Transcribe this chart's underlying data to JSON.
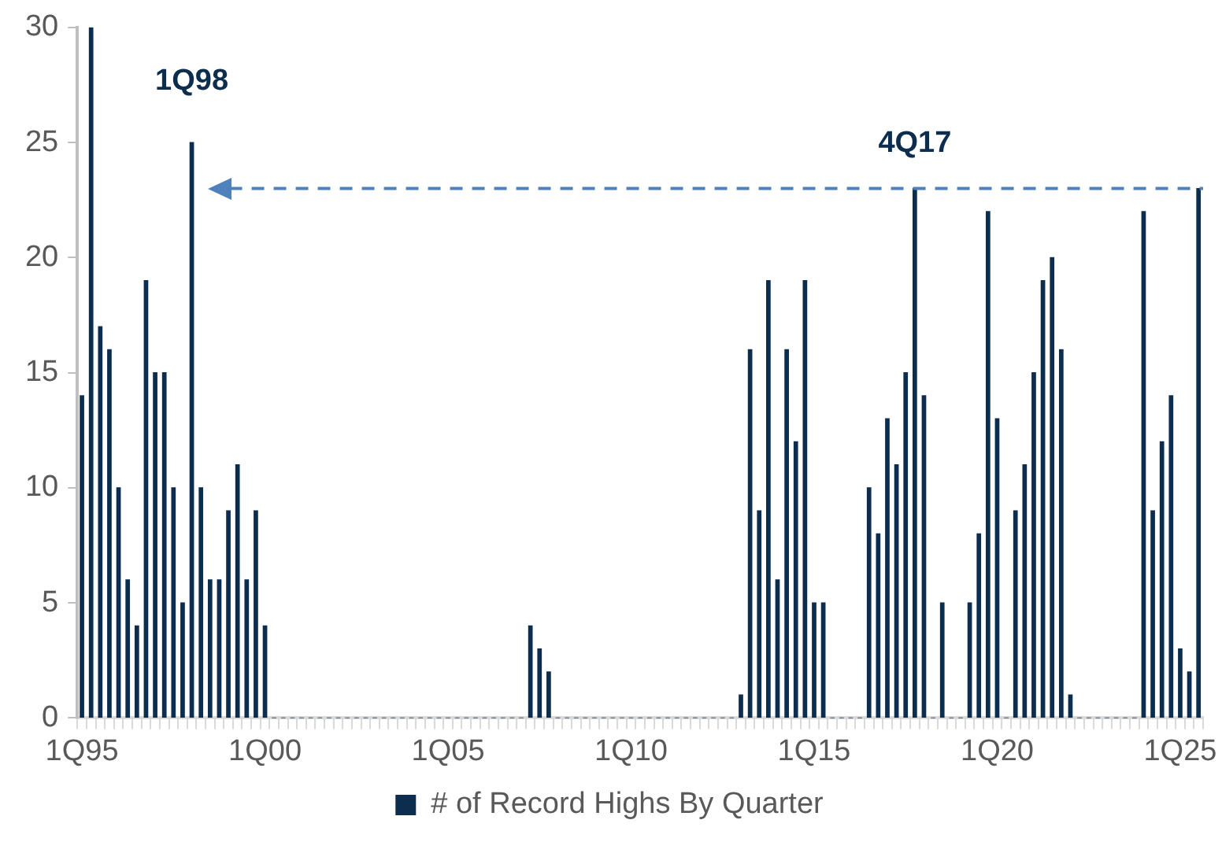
{
  "chart_data": {
    "type": "bar",
    "categories": [
      "1Q95",
      null,
      null,
      null,
      null,
      null,
      null,
      null,
      null,
      null,
      null,
      null,
      null,
      null,
      null,
      null,
      null,
      null,
      null,
      null,
      "1Q00",
      null,
      null,
      null,
      null,
      null,
      null,
      null,
      null,
      null,
      null,
      null,
      null,
      null,
      null,
      null,
      null,
      null,
      null,
      null,
      "1Q05",
      null,
      null,
      null,
      null,
      null,
      null,
      null,
      null,
      null,
      null,
      null,
      null,
      null,
      null,
      null,
      null,
      null,
      null,
      null,
      "1Q10",
      null,
      null,
      null,
      null,
      null,
      null,
      null,
      null,
      null,
      null,
      null,
      null,
      null,
      null,
      null,
      null,
      null,
      null,
      null,
      "1Q15",
      null,
      null,
      null,
      null,
      null,
      null,
      null,
      null,
      null,
      null,
      null,
      null,
      null,
      null,
      null,
      null,
      null,
      null,
      null,
      "1Q20",
      null,
      null,
      null,
      null,
      null,
      null,
      null,
      null,
      null,
      null,
      null,
      null,
      null,
      null,
      null,
      null,
      null,
      null,
      null,
      "1Q25",
      null,
      null
    ],
    "series": [
      {
        "name": "# of Record Highs By Quarter",
        "color": "#0d2d4f",
        "values": [
          14,
          30,
          17,
          16,
          10,
          6,
          4,
          19,
          15,
          15,
          10,
          5,
          25,
          10,
          6,
          6,
          9,
          11,
          6,
          9,
          4,
          0,
          0,
          0,
          0,
          0,
          0,
          0,
          0,
          0,
          0,
          0,
          0,
          0,
          0,
          0,
          0,
          0,
          0,
          0,
          0,
          0,
          0,
          0,
          0,
          0,
          0,
          0,
          0,
          4,
          3,
          2,
          0,
          0,
          0,
          0,
          0,
          0,
          0,
          0,
          0,
          0,
          0,
          0,
          0,
          0,
          0,
          0,
          0,
          0,
          0,
          0,
          1,
          16,
          9,
          19,
          6,
          16,
          12,
          19,
          5,
          5,
          0,
          0,
          0,
          0,
          10,
          8,
          13,
          11,
          15,
          23,
          14,
          0,
          5,
          0,
          0,
          5,
          8,
          22,
          13,
          0,
          9,
          11,
          15,
          19,
          20,
          16,
          1,
          0,
          0,
          0,
          0,
          0,
          0,
          0,
          22,
          9,
          12,
          14,
          3,
          2,
          23
        ]
      }
    ],
    "ylim": [
      0,
      30
    ],
    "yticks": [
      0,
      5,
      10,
      15,
      20,
      25,
      30
    ],
    "annotations": [
      "1Q98",
      "4Q17"
    ],
    "ref_lines": [
      {
        "axis": "y",
        "value": 23,
        "color": "#4f81bd",
        "line_style": "dashed"
      }
    ],
    "legend": "bottom"
  }
}
